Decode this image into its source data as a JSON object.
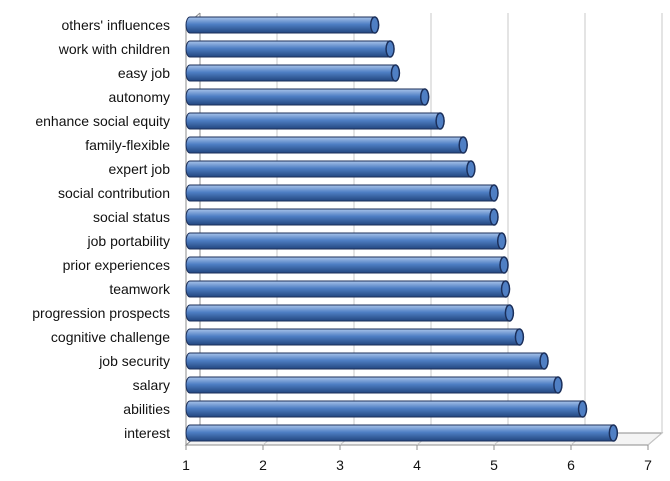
{
  "chart_data": {
    "type": "bar",
    "orientation": "horizontal",
    "categories": [
      "others' influences",
      "work with children",
      "easy job",
      "autonomy",
      "enhance social equity",
      "family-flexible",
      "expert job",
      "social contribution",
      "social status",
      "job portability",
      "prior experiences",
      "teamwork",
      "progression prospects",
      "cognitive challenge",
      "job security",
      "salary",
      "abilities",
      "interest"
    ],
    "values": [
      3.45,
      3.65,
      3.72,
      4.1,
      4.3,
      4.6,
      4.7,
      5.0,
      5.0,
      5.1,
      5.13,
      5.15,
      5.2,
      5.33,
      5.65,
      5.83,
      6.15,
      6.55
    ],
    "xticks": [
      "1",
      "2",
      "3",
      "4",
      "5",
      "6",
      "7"
    ],
    "xlim": [
      1,
      7
    ],
    "grid": true,
    "legend": "none",
    "title": "",
    "xlabel": "",
    "ylabel": "",
    "colors": {
      "bar_light": "#a9c4ea",
      "bar_mid": "#4f7fc4",
      "bar_dark": "#23467f",
      "bar_cap": "#1b2f5a",
      "grid": "#c8c8c8",
      "axis": "#8c8c8c"
    }
  }
}
